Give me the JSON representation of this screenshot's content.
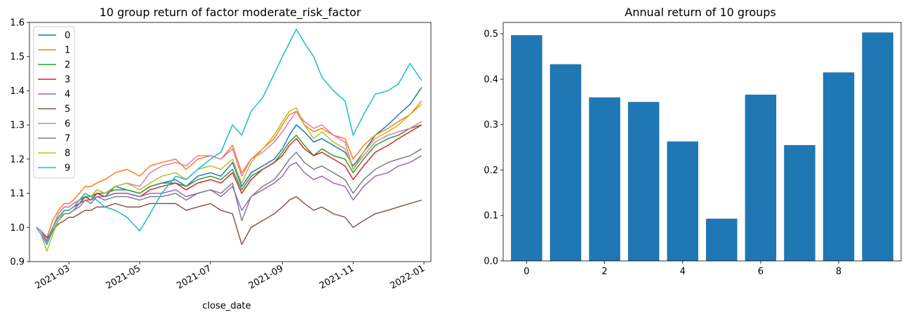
{
  "chart_data": [
    {
      "type": "line",
      "title": "10 group return of factor moderate_risk_factor",
      "xlabel": "close_date",
      "ylabel": "",
      "xlim": [
        "2021-01-26",
        "2022-01-07"
      ],
      "ylim": [
        0.9,
        1.6
      ],
      "x_ticks": [
        "2021-03",
        "2021-05",
        "2021-07",
        "2021-09",
        "2021-11",
        "2022-01"
      ],
      "y_ticks": [
        "0.9",
        "1.0",
        "1.1",
        "1.2",
        "1.3",
        "1.4",
        "1.5",
        "1.6"
      ],
      "grid": false,
      "legend_position": "upper-left",
      "x": [
        "2021-02-01",
        "2021-02-05",
        "2021-02-10",
        "2021-02-15",
        "2021-02-20",
        "2021-02-25",
        "2021-03-01",
        "2021-03-05",
        "2021-03-10",
        "2021-03-15",
        "2021-03-20",
        "2021-03-25",
        "2021-04-01",
        "2021-04-10",
        "2021-04-20",
        "2021-05-01",
        "2021-05-10",
        "2021-05-20",
        "2021-06-01",
        "2021-06-10",
        "2021-06-20",
        "2021-07-01",
        "2021-07-10",
        "2021-07-20",
        "2021-07-28",
        "2021-08-05",
        "2021-08-15",
        "2021-08-25",
        "2021-09-01",
        "2021-09-07",
        "2021-09-13",
        "2021-09-20",
        "2021-09-28",
        "2021-10-05",
        "2021-10-15",
        "2021-10-25",
        "2021-11-01",
        "2021-11-10",
        "2021-11-20",
        "2021-12-01",
        "2021-12-10",
        "2021-12-20",
        "2021-12-30"
      ],
      "series": [
        {
          "name": "0",
          "color": "#1f77b4",
          "values": [
            1.0,
            0.99,
            0.96,
            1.0,
            1.04,
            1.06,
            1.06,
            1.07,
            1.08,
            1.09,
            1.08,
            1.1,
            1.09,
            1.12,
            1.11,
            1.1,
            1.12,
            1.13,
            1.14,
            1.12,
            1.15,
            1.16,
            1.15,
            1.19,
            1.12,
            1.16,
            1.18,
            1.2,
            1.23,
            1.27,
            1.3,
            1.28,
            1.25,
            1.26,
            1.24,
            1.22,
            1.18,
            1.22,
            1.27,
            1.3,
            1.33,
            1.36,
            1.41
          ]
        },
        {
          "name": "1",
          "color": "#ff7f0e",
          "values": [
            1.0,
            0.99,
            0.97,
            1.02,
            1.05,
            1.07,
            1.07,
            1.08,
            1.1,
            1.12,
            1.12,
            1.13,
            1.14,
            1.16,
            1.17,
            1.15,
            1.18,
            1.19,
            1.2,
            1.17,
            1.2,
            1.21,
            1.2,
            1.24,
            1.16,
            1.2,
            1.23,
            1.26,
            1.3,
            1.33,
            1.34,
            1.3,
            1.28,
            1.29,
            1.27,
            1.26,
            1.2,
            1.24,
            1.27,
            1.29,
            1.31,
            1.33,
            1.37
          ]
        },
        {
          "name": "2",
          "color": "#2ca02c",
          "values": [
            1.0,
            0.99,
            0.96,
            1.0,
            1.03,
            1.05,
            1.05,
            1.06,
            1.07,
            1.09,
            1.09,
            1.1,
            1.1,
            1.11,
            1.11,
            1.1,
            1.12,
            1.13,
            1.13,
            1.12,
            1.14,
            1.15,
            1.14,
            1.17,
            1.11,
            1.15,
            1.17,
            1.19,
            1.22,
            1.25,
            1.27,
            1.24,
            1.21,
            1.23,
            1.21,
            1.2,
            1.16,
            1.2,
            1.24,
            1.26,
            1.27,
            1.29,
            1.3
          ]
        },
        {
          "name": "3",
          "color": "#d62728",
          "values": [
            1.0,
            0.99,
            0.96,
            1.0,
            1.03,
            1.05,
            1.05,
            1.06,
            1.07,
            1.09,
            1.08,
            1.1,
            1.09,
            1.1,
            1.1,
            1.09,
            1.11,
            1.12,
            1.13,
            1.11,
            1.13,
            1.14,
            1.13,
            1.16,
            1.1,
            1.14,
            1.17,
            1.19,
            1.21,
            1.24,
            1.26,
            1.23,
            1.21,
            1.22,
            1.2,
            1.18,
            1.14,
            1.18,
            1.22,
            1.24,
            1.26,
            1.28,
            1.3
          ]
        },
        {
          "name": "4",
          "color": "#9467bd",
          "values": [
            1.0,
            0.99,
            0.96,
            0.99,
            1.02,
            1.04,
            1.04,
            1.05,
            1.07,
            1.08,
            1.08,
            1.09,
            1.09,
            1.1,
            1.1,
            1.09,
            1.1,
            1.1,
            1.11,
            1.09,
            1.1,
            1.11,
            1.09,
            1.12,
            1.05,
            1.09,
            1.11,
            1.13,
            1.15,
            1.18,
            1.19,
            1.16,
            1.14,
            1.15,
            1.13,
            1.12,
            1.08,
            1.12,
            1.15,
            1.16,
            1.18,
            1.19,
            1.21
          ]
        },
        {
          "name": "5",
          "color": "#8c564b",
          "values": [
            1.0,
            0.99,
            0.97,
            0.99,
            1.01,
            1.02,
            1.03,
            1.03,
            1.04,
            1.05,
            1.05,
            1.06,
            1.06,
            1.07,
            1.06,
            1.06,
            1.07,
            1.07,
            1.07,
            1.05,
            1.06,
            1.07,
            1.05,
            1.04,
            0.95,
            1.0,
            1.02,
            1.04,
            1.06,
            1.08,
            1.09,
            1.07,
            1.05,
            1.06,
            1.04,
            1.03,
            1.0,
            1.02,
            1.04,
            1.05,
            1.06,
            1.07,
            1.08
          ]
        },
        {
          "name": "6",
          "color": "#e377c2",
          "values": [
            1.0,
            0.99,
            0.95,
            1.0,
            1.04,
            1.06,
            1.06,
            1.07,
            1.08,
            1.1,
            1.09,
            1.11,
            1.1,
            1.12,
            1.13,
            1.12,
            1.16,
            1.18,
            1.19,
            1.18,
            1.21,
            1.21,
            1.2,
            1.23,
            1.15,
            1.2,
            1.22,
            1.25,
            1.28,
            1.31,
            1.34,
            1.31,
            1.29,
            1.3,
            1.27,
            1.25,
            1.17,
            1.21,
            1.25,
            1.27,
            1.28,
            1.29,
            1.31
          ]
        },
        {
          "name": "7",
          "color": "#7f7f7f",
          "values": [
            1.0,
            0.98,
            0.95,
            0.99,
            1.02,
            1.04,
            1.04,
            1.05,
            1.06,
            1.08,
            1.07,
            1.09,
            1.08,
            1.09,
            1.09,
            1.08,
            1.09,
            1.09,
            1.1,
            1.08,
            1.1,
            1.11,
            1.1,
            1.13,
            1.02,
            1.09,
            1.12,
            1.14,
            1.17,
            1.2,
            1.22,
            1.19,
            1.17,
            1.18,
            1.16,
            1.14,
            1.1,
            1.14,
            1.17,
            1.19,
            1.2,
            1.21,
            1.23
          ]
        },
        {
          "name": "8",
          "color": "#bcbd22",
          "values": [
            1.0,
            0.98,
            0.93,
            0.98,
            1.02,
            1.05,
            1.05,
            1.06,
            1.08,
            1.1,
            1.09,
            1.11,
            1.1,
            1.12,
            1.13,
            1.11,
            1.13,
            1.15,
            1.16,
            1.14,
            1.17,
            1.18,
            1.17,
            1.2,
            1.13,
            1.19,
            1.23,
            1.27,
            1.31,
            1.34,
            1.35,
            1.3,
            1.26,
            1.28,
            1.25,
            1.23,
            1.17,
            1.22,
            1.26,
            1.28,
            1.3,
            1.33,
            1.36
          ]
        },
        {
          "name": "9",
          "color": "#17becf",
          "values": [
            1.0,
            0.98,
            0.95,
            1.0,
            1.03,
            1.05,
            1.05,
            1.06,
            1.08,
            1.1,
            1.09,
            1.08,
            1.06,
            1.05,
            1.03,
            0.99,
            1.04,
            1.1,
            1.15,
            1.14,
            1.17,
            1.2,
            1.22,
            1.3,
            1.27,
            1.34,
            1.38,
            1.45,
            1.5,
            1.54,
            1.58,
            1.54,
            1.5,
            1.44,
            1.4,
            1.37,
            1.27,
            1.33,
            1.39,
            1.4,
            1.42,
            1.48,
            1.43
          ]
        }
      ]
    },
    {
      "type": "bar",
      "title": "Annual return of 10 groups",
      "xlabel": "",
      "ylabel": "",
      "categories": [
        "0",
        "1",
        "2",
        "3",
        "4",
        "5",
        "6",
        "7",
        "8",
        "9"
      ],
      "values": [
        0.497,
        0.433,
        0.36,
        0.35,
        0.263,
        0.093,
        0.366,
        0.255,
        0.415,
        0.503
      ],
      "color": "#1f77b4",
      "xlim": [
        -0.6,
        9.6
      ],
      "ylim": [
        0.0,
        0.525
      ],
      "x_ticks": [
        "0",
        "2",
        "4",
        "6",
        "8"
      ],
      "y_ticks": [
        "0.0",
        "0.1",
        "0.2",
        "0.3",
        "0.4",
        "0.5"
      ],
      "grid": false
    }
  ]
}
